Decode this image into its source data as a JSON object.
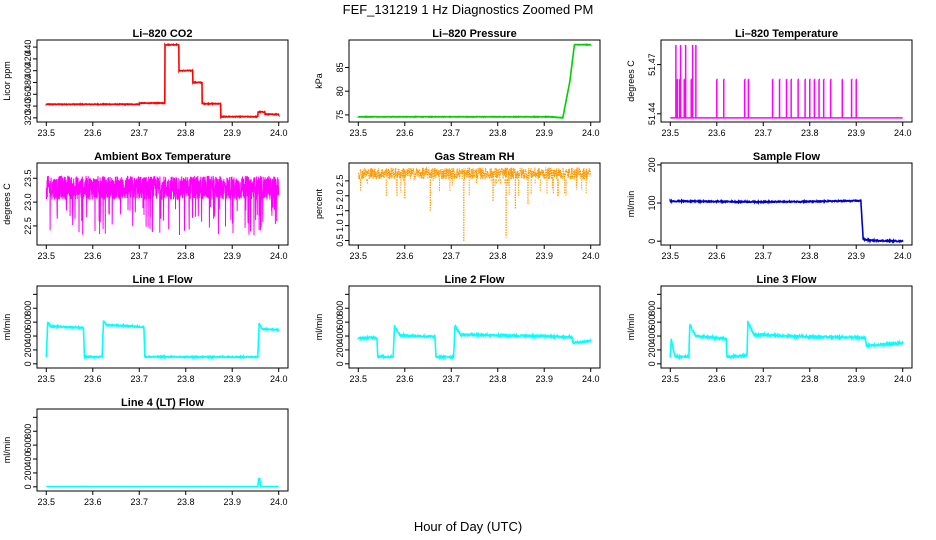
{
  "figure": {
    "main_title": "FEF_131219  1 Hz Diagnostics Zoomed PM",
    "x_axis_label": "Hour of Day (UTC)"
  },
  "chart_data": [
    {
      "type": "line",
      "title": "Li–820 CO2",
      "ylabel": "Licor ppm",
      "color": "#ff0000",
      "xlim": [
        23.5,
        24.0
      ],
      "ylim": [
        313,
        452
      ],
      "xticks": [
        "23.5",
        "23.6",
        "23.7",
        "23.8",
        "23.9",
        "24.0"
      ],
      "yticks": [
        {
          "v": 320,
          "label": "320"
        },
        {
          "v": 340,
          "label": "340"
        },
        {
          "v": 360,
          "label": "360"
        },
        {
          "v": 380,
          "label": "380"
        },
        {
          "v": 400,
          "label": "400"
        },
        {
          "v": 420,
          "label": "420"
        },
        {
          "v": 440,
          "label": "440"
        }
      ],
      "x": [
        23.5,
        23.7,
        23.7,
        23.755,
        23.755,
        23.785,
        23.785,
        23.815,
        23.815,
        23.835,
        23.835,
        23.875,
        23.875,
        23.955,
        23.955,
        23.97,
        23.97,
        24.0
      ],
      "y": [
        343,
        343,
        345,
        345,
        444,
        444,
        400,
        400,
        380,
        380,
        344,
        344,
        322,
        322,
        330,
        330,
        326,
        326
      ],
      "noise": 0.6
    },
    {
      "type": "line",
      "title": "Li–820 Pressure",
      "ylabel": "kPa",
      "color": "#00cc00",
      "xlim": [
        23.5,
        24.0
      ],
      "ylim": [
        73.5,
        90.8
      ],
      "xticks": [
        "23.5",
        "23.6",
        "23.7",
        "23.8",
        "23.9",
        "24.0"
      ],
      "yticks": [
        {
          "v": 75,
          "label": "75"
        },
        {
          "v": 80,
          "label": "80"
        },
        {
          "v": 85,
          "label": "85"
        }
      ],
      "x": [
        23.5,
        23.91,
        23.94,
        23.955,
        23.965,
        24.0
      ],
      "y": [
        74.6,
        74.6,
        74.4,
        82.0,
        89.8,
        89.8
      ],
      "noise": 0.05
    },
    {
      "type": "line",
      "title": "Li–820 Temperature",
      "ylabel": "degrees C",
      "color": "#ff00ff",
      "xlim": [
        23.5,
        24.0
      ],
      "ylim": [
        51.435,
        51.485
      ],
      "xticks": [
        "23.5",
        "23.6",
        "23.7",
        "23.8",
        "23.9",
        "24.0"
      ],
      "yticks": [
        {
          "v": 51.44,
          "label": "51.44"
        },
        {
          "v": 51.47,
          "label": "51.47"
        }
      ],
      "baseline": 51.4375,
      "spike_high": 51.482,
      "spike_mid": 51.461,
      "spike_times": [
        23.515,
        23.52,
        23.53,
        23.545,
        23.6,
        23.615,
        23.66,
        23.668,
        23.72,
        23.735,
        23.75,
        23.76,
        23.775,
        23.79,
        23.8,
        23.81,
        23.82,
        23.83,
        23.845,
        23.87,
        23.89,
        23.9
      ],
      "spike_high_times": [
        23.512,
        23.522,
        23.533,
        23.548,
        23.555
      ]
    },
    {
      "type": "line",
      "title": "Ambient Box Temperature",
      "ylabel": "degrees C",
      "color": "#ff00ff",
      "xlim": [
        23.5,
        24.0
      ],
      "ylim": [
        22.1,
        23.82
      ],
      "xticks": [
        "23.5",
        "23.6",
        "23.7",
        "23.8",
        "23.9",
        "24.0"
      ],
      "yticks": [
        {
          "v": 22.5,
          "label": "22.5"
        },
        {
          "v": 23.0,
          "label": "23.0"
        },
        {
          "v": 23.5,
          "label": "23.5"
        }
      ],
      "center": 23.3,
      "spread": 0.25,
      "dip_min": 22.3
    },
    {
      "type": "scatter",
      "title": "Gas Stream RH",
      "ylabel": "percent",
      "color": "#ff9900",
      "xlim": [
        23.5,
        24.0
      ],
      "ylim": [
        0.35,
        3.1
      ],
      "xticks": [
        "23.5",
        "23.6",
        "23.7",
        "23.8",
        "23.9",
        "24.0"
      ],
      "yticks": [
        {
          "v": 0.5,
          "label": "0.5"
        },
        {
          "v": 1.0,
          "label": "1.0"
        },
        {
          "v": 1.5,
          "label": "1.5"
        },
        {
          "v": 2.0,
          "label": "2.0"
        },
        {
          "v": 2.5,
          "label": "2.5"
        }
      ],
      "band_low": 2.55,
      "band_high": 2.95,
      "dips": [
        {
          "x": 23.727,
          "y": 0.45
        },
        {
          "x": 23.818,
          "y": 0.6
        },
        {
          "x": 23.655,
          "y": 1.5
        },
        {
          "x": 23.838,
          "y": 1.55
        },
        {
          "x": 23.865,
          "y": 1.7
        },
        {
          "x": 23.6,
          "y": 1.9
        },
        {
          "x": 23.79,
          "y": 1.8
        },
        {
          "x": 23.93,
          "y": 2.0
        }
      ]
    },
    {
      "type": "line",
      "title": "Sample Flow",
      "ylabel": "ml/min",
      "color": "#0000cc",
      "xlim": [
        23.5,
        24.0
      ],
      "ylim": [
        -10,
        205
      ],
      "xticks": [
        "23.5",
        "23.6",
        "23.7",
        "23.8",
        "23.9",
        "24.0"
      ],
      "yticks": [
        {
          "v": 0,
          "label": "0"
        },
        {
          "v": 100,
          "label": "100"
        },
        {
          "v": 200,
          "label": "200"
        }
      ],
      "x": [
        23.5,
        23.6,
        23.7,
        23.8,
        23.91,
        23.915,
        23.93,
        24.0
      ],
      "y": [
        105,
        104,
        103,
        104,
        106,
        5,
        2,
        0
      ],
      "noise": 1.5
    },
    {
      "type": "line",
      "title": "Line 1 Flow",
      "ylabel": "ml/min",
      "color": "#00ffff",
      "xlim": [
        23.5,
        24.0
      ],
      "ylim": [
        -60,
        1120
      ],
      "xticks": [
        "23.5",
        "23.6",
        "23.7",
        "23.8",
        "23.9",
        "24.0"
      ],
      "yticks": [
        {
          "v": 0,
          "label": "0"
        },
        {
          "v": 200,
          "label": "200"
        },
        {
          "v": 400,
          "label": "400"
        },
        {
          "v": 600,
          "label": "600"
        },
        {
          "v": 800,
          "label": "800"
        },
        {
          "v": 1000,
          "label": ""
        }
      ],
      "x": [
        23.5,
        23.503,
        23.51,
        23.58,
        23.582,
        23.62,
        23.623,
        23.63,
        23.71,
        23.712,
        23.955,
        23.958,
        23.965,
        24.0
      ],
      "y": [
        100,
        600,
        540,
        520,
        100,
        100,
        620,
        560,
        530,
        100,
        100,
        580,
        500,
        490
      ],
      "noise": 8
    },
    {
      "type": "line",
      "title": "Line 2 Flow",
      "ylabel": "ml/min",
      "color": "#00ffff",
      "xlim": [
        23.5,
        24.0
      ],
      "ylim": [
        -60,
        1120
      ],
      "xticks": [
        "23.5",
        "23.6",
        "23.7",
        "23.8",
        "23.9",
        "24.0"
      ],
      "yticks": [
        {
          "v": 0,
          "label": "0"
        },
        {
          "v": 200,
          "label": "200"
        },
        {
          "v": 400,
          "label": "400"
        },
        {
          "v": 600,
          "label": "600"
        },
        {
          "v": 800,
          "label": "800"
        },
        {
          "v": 1000,
          "label": ""
        }
      ],
      "x": [
        23.5,
        23.54,
        23.542,
        23.575,
        23.578,
        23.59,
        23.665,
        23.667,
        23.705,
        23.708,
        23.72,
        23.8,
        23.9,
        23.96,
        23.962,
        24.0
      ],
      "y": [
        370,
        380,
        100,
        100,
        540,
        410,
        390,
        100,
        100,
        550,
        420,
        410,
        400,
        380,
        300,
        330
      ],
      "noise": 12
    },
    {
      "type": "line",
      "title": "Line 3 Flow",
      "ylabel": "ml/min",
      "color": "#00ffff",
      "xlim": [
        23.5,
        24.0
      ],
      "ylim": [
        -60,
        1120
      ],
      "xticks": [
        "23.5",
        "23.6",
        "23.7",
        "23.8",
        "23.9",
        "24.0"
      ],
      "yticks": [
        {
          "v": 0,
          "label": "0"
        },
        {
          "v": 200,
          "label": "200"
        },
        {
          "v": 400,
          "label": "400"
        },
        {
          "v": 600,
          "label": "600"
        },
        {
          "v": 800,
          "label": "800"
        },
        {
          "v": 1000,
          "label": ""
        }
      ],
      "x": [
        23.5,
        23.502,
        23.51,
        23.54,
        23.542,
        23.555,
        23.62,
        23.622,
        23.665,
        23.667,
        23.68,
        23.8,
        23.9,
        23.92,
        23.922,
        24.0
      ],
      "y": [
        100,
        360,
        100,
        100,
        560,
        400,
        360,
        100,
        120,
        600,
        420,
        390,
        380,
        370,
        260,
        300
      ],
      "noise": 14
    },
    {
      "type": "line",
      "title": "Line 4 (LT) Flow",
      "ylabel": "ml/min",
      "color": "#00ffff",
      "xlim": [
        23.5,
        24.0
      ],
      "ylim": [
        -60,
        1120
      ],
      "xticks": [
        "23.5",
        "23.6",
        "23.7",
        "23.8",
        "23.9",
        "24.0"
      ],
      "yticks": [
        {
          "v": 0,
          "label": "0"
        },
        {
          "v": 200,
          "label": "200"
        },
        {
          "v": 400,
          "label": "400"
        },
        {
          "v": 600,
          "label": "600"
        },
        {
          "v": 800,
          "label": "800"
        },
        {
          "v": 1000,
          "label": ""
        }
      ],
      "x": [
        23.5,
        23.955,
        23.957,
        23.959,
        23.961,
        24.0
      ],
      "y": [
        5,
        5,
        120,
        120,
        5,
        5
      ],
      "noise": 0.5
    }
  ]
}
